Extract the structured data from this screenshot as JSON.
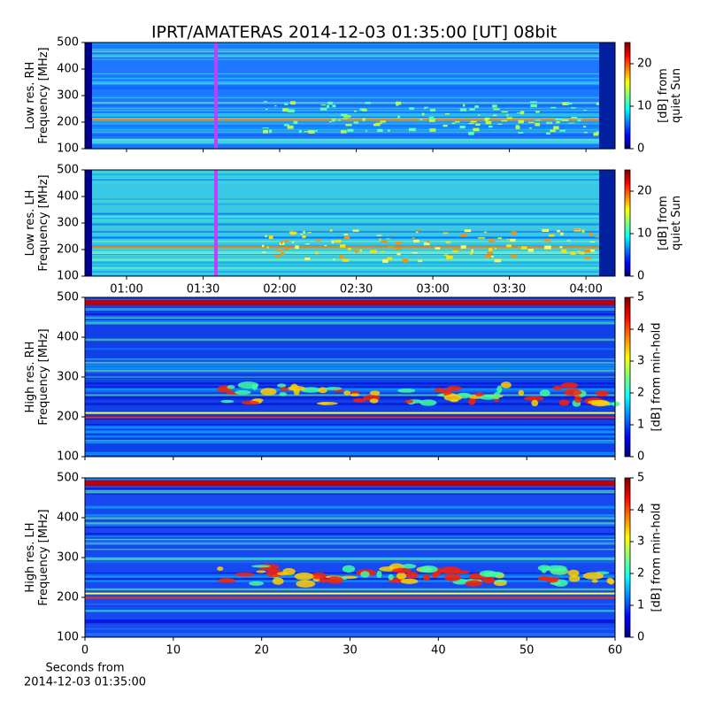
{
  "chart_data": [
    {
      "type": "spectrogram",
      "title": "IPRT/AMATERAS 2014-12-03 01:35:00 [UT]   08bit",
      "ylabel": [
        "Low res. RH",
        "Frequency [MHz]"
      ],
      "xlim": [
        43.7,
        251.4
      ],
      "ylim": [
        100,
        500
      ],
      "yticks": [
        100,
        200,
        300,
        400,
        500
      ],
      "marker_x": 95,
      "marker_color": "#c040ff",
      "colormap": "jet",
      "colorbar": {
        "label": [
          "[dB] from",
          "quiet Sun"
        ],
        "lim": [
          0,
          25
        ],
        "ticks": [
          0,
          10,
          20
        ]
      }
    },
    {
      "type": "spectrogram",
      "ylabel": [
        "Low res. LH",
        "Frequency [MHz]"
      ],
      "xlim": [
        43.7,
        251.4
      ],
      "xticks": [
        {
          "value": 60,
          "label": "01:00"
        },
        {
          "value": 90,
          "label": "01:30"
        },
        {
          "value": 120,
          "label": "02:00"
        },
        {
          "value": 150,
          "label": "02:30"
        },
        {
          "value": 180,
          "label": "03:00"
        },
        {
          "value": 210,
          "label": "03:30"
        },
        {
          "value": 240,
          "label": "04:00"
        }
      ],
      "ylim": [
        100,
        500
      ],
      "yticks": [
        100,
        200,
        300,
        400,
        500
      ],
      "marker_x": 95,
      "marker_color": "#c040ff",
      "colormap": "jet",
      "colorbar": {
        "label": [
          "[dB] from",
          "quiet Sun"
        ],
        "lim": [
          0,
          25
        ],
        "ticks": [
          0,
          10,
          20
        ]
      }
    },
    {
      "type": "spectrogram",
      "ylabel": [
        "High res. RH",
        "Frequency [MHz]"
      ],
      "xlim": [
        0,
        60
      ],
      "ylim": [
        100,
        500
      ],
      "yticks": [
        100,
        200,
        300,
        400,
        500
      ],
      "colormap": "jet",
      "colorbar": {
        "label": [
          "[dB] from min-hold"
        ],
        "lim": [
          0,
          5
        ],
        "ticks": [
          0,
          1,
          2,
          3,
          4,
          5
        ]
      }
    },
    {
      "type": "spectrogram",
      "ylabel": [
        "High res. LH",
        "Frequency [MHz]"
      ],
      "xlim": [
        0,
        60
      ],
      "xticks": [
        0,
        10,
        20,
        30,
        40,
        50,
        60
      ],
      "xlabel": [
        "Seconds from",
        "2014-12-03 01:35:00"
      ],
      "ylim": [
        100,
        500
      ],
      "yticks": [
        100,
        200,
        300,
        400,
        500
      ],
      "colormap": "jet",
      "colorbar": {
        "label": [
          "[dB] from min-hold"
        ],
        "lim": [
          0,
          5
        ],
        "ticks": [
          0,
          1,
          2,
          3,
          4,
          5
        ]
      }
    }
  ]
}
